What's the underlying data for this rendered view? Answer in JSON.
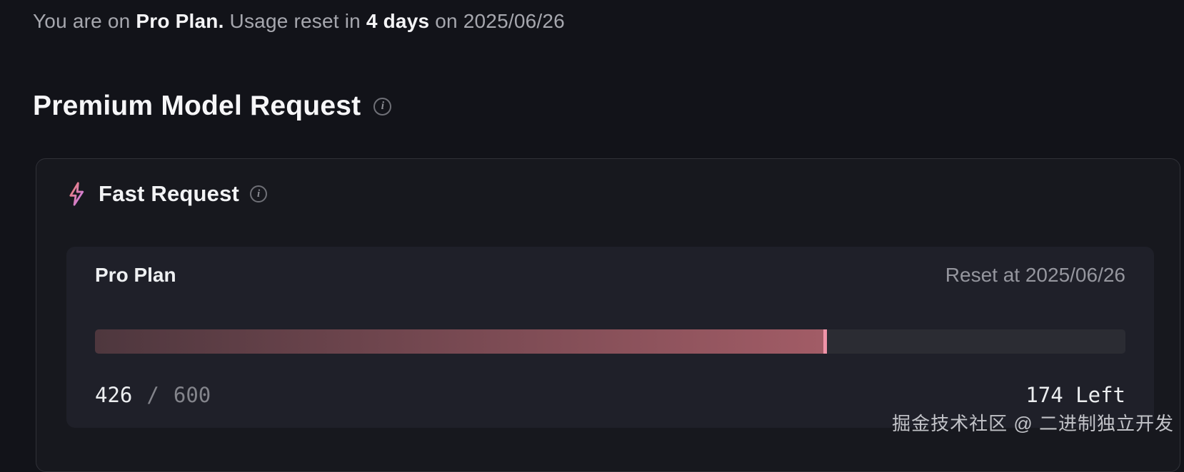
{
  "status_line": {
    "prefix": "You are on ",
    "plan": "Pro Plan.",
    "middle": " Usage reset in ",
    "days": "4 days",
    "suffix": " on 2025/06/26"
  },
  "heading": {
    "title": "Premium Model Request",
    "info_glyph": "i"
  },
  "fast_request": {
    "title": "Fast Request",
    "info_glyph": "i",
    "panel": {
      "plan_name": "Pro Plan",
      "reset_label": "Reset at 2025/06/26",
      "used": "426",
      "separator": "/",
      "total": "600",
      "remaining": "174 Left",
      "progress_percent": 71
    }
  },
  "colors": {
    "panel_bg": "#1f2029",
    "track_bg": "#2b2c33",
    "fill_start": "#4e373e",
    "fill_end": "#a25c66",
    "fill_edge": "#ef93a8",
    "bolt_gradient_start": "#ee7e6d",
    "bolt_gradient_end": "#c77df2"
  },
  "watermark": "掘金技术社区 @ 二进制独立开发"
}
